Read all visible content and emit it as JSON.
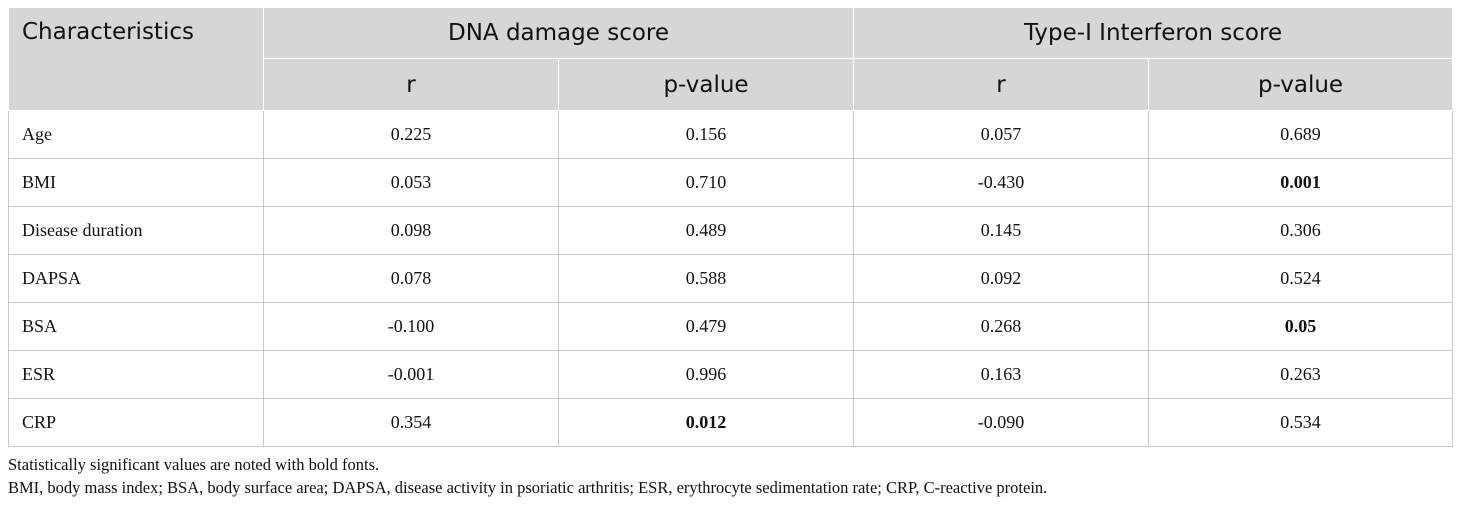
{
  "table": {
    "header": {
      "characteristics": "Characteristics",
      "group1": "DNA damage score",
      "group2": "Type-I Interferon score",
      "sub": [
        "r",
        "p-value",
        "r",
        "p-value"
      ]
    },
    "rows": [
      {
        "label": "Age",
        "cells": [
          {
            "v": "0.225"
          },
          {
            "v": "0.156"
          },
          {
            "v": "0.057"
          },
          {
            "v": "0.689"
          }
        ]
      },
      {
        "label": "BMI",
        "cells": [
          {
            "v": "0.053"
          },
          {
            "v": "0.710"
          },
          {
            "v": "-0.430"
          },
          {
            "v": "0.001",
            "bold": true
          }
        ]
      },
      {
        "label": "Disease duration",
        "cells": [
          {
            "v": "0.098"
          },
          {
            "v": "0.489"
          },
          {
            "v": "0.145"
          },
          {
            "v": "0.306"
          }
        ]
      },
      {
        "label": "DAPSA",
        "cells": [
          {
            "v": "0.078"
          },
          {
            "v": "0.588"
          },
          {
            "v": "0.092"
          },
          {
            "v": "0.524"
          }
        ]
      },
      {
        "label": "BSA",
        "cells": [
          {
            "v": "-0.100"
          },
          {
            "v": "0.479"
          },
          {
            "v": "0.268"
          },
          {
            "v": "0.05",
            "bold": true
          }
        ]
      },
      {
        "label": "ESR",
        "cells": [
          {
            "v": "-0.001"
          },
          {
            "v": "0.996"
          },
          {
            "v": "0.163"
          },
          {
            "v": "0.263"
          }
        ]
      },
      {
        "label": "CRP",
        "cells": [
          {
            "v": "0.354"
          },
          {
            "v": "0.012",
            "bold": true
          },
          {
            "v": "-0.090"
          },
          {
            "v": "0.534"
          }
        ]
      }
    ]
  },
  "notes": [
    "Statistically significant values are noted with bold fonts.",
    "BMI, body mass index; BSA, body surface area; DAPSA, disease activity in psoriatic arthritis; ESR, erythrocyte sedimentation rate; CRP, C-reactive protein."
  ]
}
